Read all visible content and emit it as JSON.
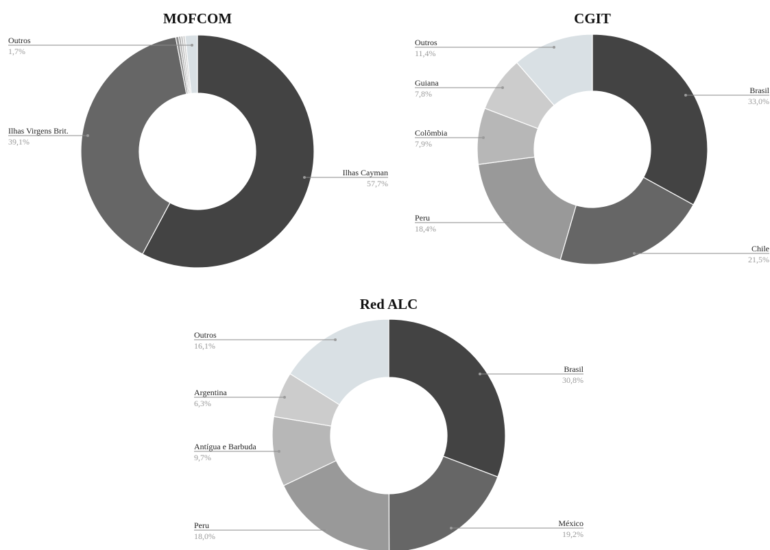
{
  "chart_data": [
    {
      "type": "pie",
      "title": "MOFCOM",
      "slices": [
        {
          "label": "Ilhas Cayman",
          "value": 57.7,
          "display": "57,7%",
          "color": "#434343"
        },
        {
          "label": "Ilhas Virgens Brit.",
          "value": 39.1,
          "display": "39,1%",
          "color": "#666666"
        },
        {
          "label": "",
          "value": 0.4,
          "display": "",
          "color": "#8c8c8c"
        },
        {
          "label": "",
          "value": 0.3,
          "display": "",
          "color": "#a6a6a6"
        },
        {
          "label": "",
          "value": 0.3,
          "display": "",
          "color": "#bdbdbd"
        },
        {
          "label": "",
          "value": 0.3,
          "display": "",
          "color": "#cfcfcf"
        },
        {
          "label": "Outros",
          "value": 1.7,
          "display": "1,7%",
          "color": "#d9e0e4"
        }
      ]
    },
    {
      "type": "pie",
      "title": "CGIT",
      "slices": [
        {
          "label": "Brasil",
          "value": 33.0,
          "display": "33,0%",
          "color": "#434343"
        },
        {
          "label": "Chile",
          "value": 21.5,
          "display": "21,5%",
          "color": "#666666"
        },
        {
          "label": "Peru",
          "value": 18.4,
          "display": "18,4%",
          "color": "#999999"
        },
        {
          "label": "Colômbia",
          "value": 7.9,
          "display": "7,9%",
          "color": "#b7b7b7"
        },
        {
          "label": "Guiana",
          "value": 7.8,
          "display": "7,8%",
          "color": "#cccccc"
        },
        {
          "label": "Outros",
          "value": 11.4,
          "display": "11,4%",
          "color": "#d9e0e4"
        }
      ]
    },
    {
      "type": "pie",
      "title": "Red ALC",
      "slices": [
        {
          "label": "Brasil",
          "value": 30.8,
          "display": "30,8%",
          "color": "#434343"
        },
        {
          "label": "México",
          "value": 19.2,
          "display": "19,2%",
          "color": "#666666"
        },
        {
          "label": "Peru",
          "value": 18.0,
          "display": "18,0%",
          "color": "#999999"
        },
        {
          "label": "Antígua e Barbuda",
          "value": 9.7,
          "display": "9,7%",
          "color": "#b7b7b7"
        },
        {
          "label": "Argentina",
          "value": 6.3,
          "display": "6,3%",
          "color": "#cccccc"
        },
        {
          "label": "Outros",
          "value": 16.1,
          "display": "16,1%",
          "color": "#d9e0e4"
        }
      ]
    }
  ]
}
